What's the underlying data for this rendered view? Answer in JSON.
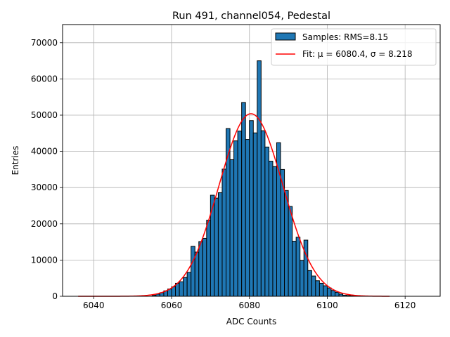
{
  "chart_data": {
    "type": "bar",
    "title": "Run 491, channel054, Pedestal",
    "xlabel": "ADC Counts",
    "ylabel": "Entries",
    "xlim": [
      6032,
      6129
    ],
    "ylim": [
      0,
      75000
    ],
    "xticks": [
      6040,
      6060,
      6080,
      6100,
      6120
    ],
    "yticks": [
      0,
      10000,
      20000,
      30000,
      40000,
      50000,
      60000,
      70000
    ],
    "grid": true,
    "legend_position": "top-right",
    "histogram": {
      "name": "Samples: RMS=8.15",
      "color": "#1f77b4",
      "bin_width": 1,
      "bin_starts": [
        6055,
        6056,
        6057,
        6058,
        6059,
        6060,
        6061,
        6062,
        6063,
        6064,
        6065,
        6066,
        6067,
        6068,
        6069,
        6070,
        6071,
        6072,
        6073,
        6074,
        6075,
        6076,
        6077,
        6078,
        6079,
        6080,
        6081,
        6082,
        6083,
        6084,
        6085,
        6086,
        6087,
        6088,
        6089,
        6090,
        6091,
        6092,
        6093,
        6094,
        6095,
        6096,
        6097,
        6098,
        6099,
        6100,
        6101,
        6102,
        6103,
        6104,
        6105,
        6106,
        6107
      ],
      "counts": [
        300,
        600,
        1000,
        1500,
        2000,
        2600,
        3600,
        4000,
        5200,
        6600,
        13800,
        12200,
        15100,
        16000,
        21000,
        27900,
        27100,
        28600,
        35100,
        46300,
        37700,
        42900,
        45600,
        53500,
        43300,
        48500,
        45100,
        65000,
        45700,
        41200,
        37300,
        35800,
        42400,
        35000,
        29200,
        24800,
        15200,
        16300,
        9900,
        15500,
        7100,
        5600,
        4300,
        3600,
        2900,
        2300,
        1600,
        1100,
        600,
        300,
        200,
        100,
        50
      ]
    },
    "fit": {
      "name": "Fit: μ = 6080.4, σ = 8.218",
      "color": "#ff0000",
      "mu": 6080.4,
      "sigma": 8.218,
      "amplitude": 50400,
      "x_range": [
        6036,
        6116
      ]
    }
  }
}
